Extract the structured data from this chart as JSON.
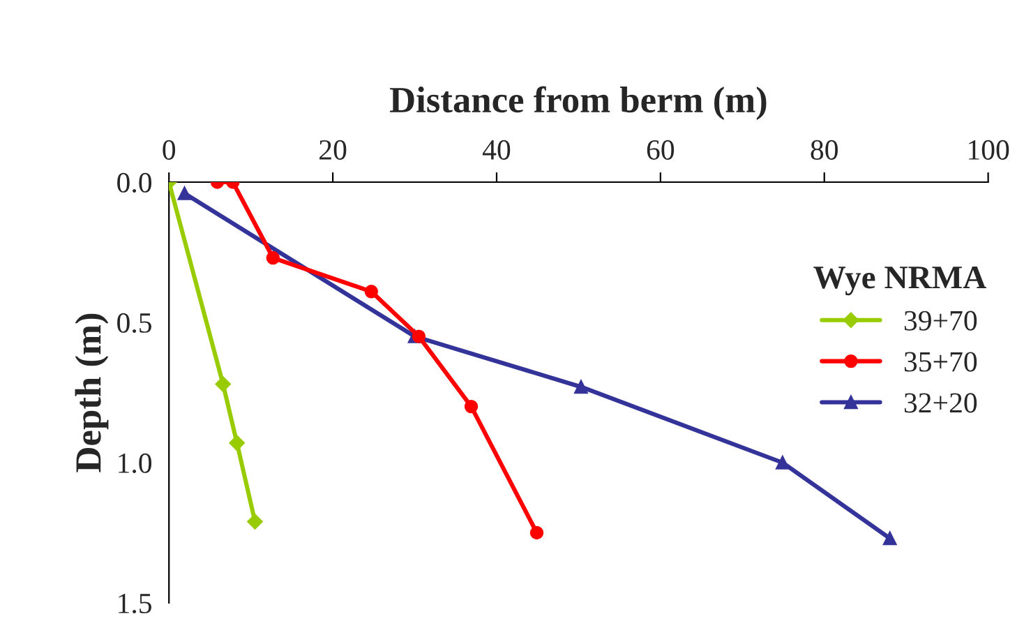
{
  "chart_data": {
    "type": "line",
    "xlabel": "Distance from berm (m)",
    "ylabel": "Depth (m)",
    "legend_title": "Wye NRMA",
    "legend": "right",
    "xlim": [
      0,
      100
    ],
    "xticks": [
      0,
      20,
      40,
      60,
      80,
      100
    ],
    "ylim": [
      1.5,
      0.0
    ],
    "yticks": [
      {
        "value": 0.0,
        "label": "0.0"
      },
      {
        "value": 0.5,
        "label": "0.5"
      },
      {
        "value": 1.0,
        "label": "1.0"
      },
      {
        "value": 1.5,
        "label": "1.5"
      }
    ],
    "grid": false,
    "series": [
      {
        "name": "39+70",
        "color": "#99cc00",
        "marker": "diamond",
        "x": [
          0,
          6.6,
          8.3,
          10.5
        ],
        "values": [
          0.0,
          0.72,
          0.93,
          1.21
        ]
      },
      {
        "name": "35+70",
        "color": "#ff0000",
        "marker": "circle",
        "x": [
          5.9,
          7.8,
          12.7,
          24.7,
          30.5,
          36.9,
          44.9
        ],
        "values": [
          0.0,
          0.0,
          0.27,
          0.39,
          0.55,
          0.8,
          1.25
        ]
      },
      {
        "name": "32+20",
        "color": "#333399",
        "marker": "triangle",
        "x": [
          1.9,
          30,
          50.3,
          74.9,
          88
        ],
        "values": [
          0.04,
          0.55,
          0.73,
          1.0,
          1.27
        ]
      }
    ]
  }
}
